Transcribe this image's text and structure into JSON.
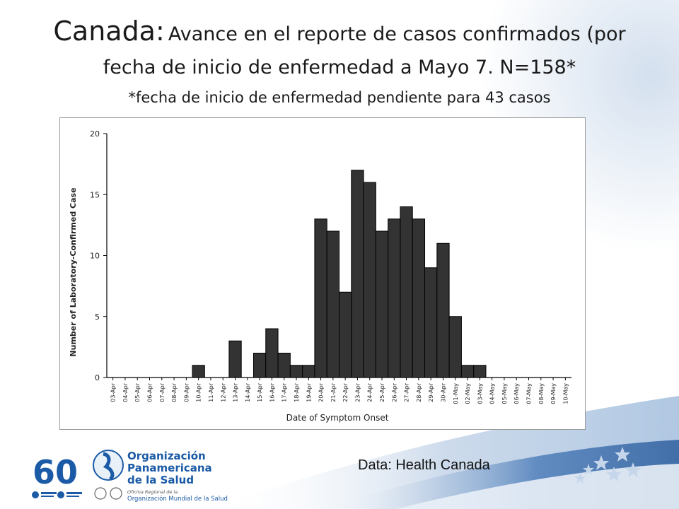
{
  "slide": {
    "title_country": "Canada:",
    "title_rest": "Avance en el reporte de casos confirmados (por fecha de inicio de enfermedad a Mayo 7. N=158*",
    "subtitle": "*fecha de inicio de enfermedad pendiente para 43 casos",
    "source": "Data: Health Canada"
  },
  "logos": {
    "anniversary": {
      "number": "60",
      "caption_left": "Organización Mundial de la Salud",
      "caption_right": "Organización Panamericana de la Salud"
    },
    "ops": {
      "line1": "Organización",
      "line2": "Panamericana",
      "line3": "de la Salud",
      "office_line1": "Oficina Regional de la",
      "office_line2": "Organización Mundial de la Salud"
    }
  },
  "colors": {
    "bar": "#333333",
    "brand_blue": "#1a5aa6",
    "light_blue": "#2c8fd6",
    "background_swoosh": "#dce6f2"
  },
  "chart_data": {
    "type": "bar",
    "title": "",
    "xlabel": "Date of Symptom Onset",
    "ylabel": "Number of Laboratory-Confirmed Case",
    "ylim": [
      0,
      20
    ],
    "yticks": [
      0,
      5,
      10,
      15,
      20
    ],
    "grid": false,
    "categories": [
      "03-Apr",
      "04-Apr",
      "05-Apr",
      "06-Apr",
      "07-Apr",
      "08-Apr",
      "09-Apr",
      "10-Apr",
      "11-Apr",
      "12-Apr",
      "13-Apr",
      "14-Apr",
      "15-Apr",
      "16-Apr",
      "17-Apr",
      "18-Apr",
      "19-Apr",
      "20-Apr",
      "21-Apr",
      "22-Apr",
      "23-Apr",
      "24-Apr",
      "25-Apr",
      "26-Apr",
      "27-Apr",
      "28-Apr",
      "29-Apr",
      "30-Apr",
      "01-May",
      "02-May",
      "03-May",
      "04-May",
      "05-May",
      "06-May",
      "07-May",
      "08-May",
      "09-May",
      "10-May"
    ],
    "values": [
      0,
      0,
      0,
      0,
      0,
      0,
      0,
      1,
      0,
      0,
      3,
      0,
      2,
      4,
      2,
      1,
      1,
      13,
      12,
      7,
      17,
      16,
      12,
      13,
      14,
      13,
      9,
      11,
      5,
      1,
      1,
      0,
      0,
      0,
      0,
      0,
      0,
      0
    ]
  }
}
